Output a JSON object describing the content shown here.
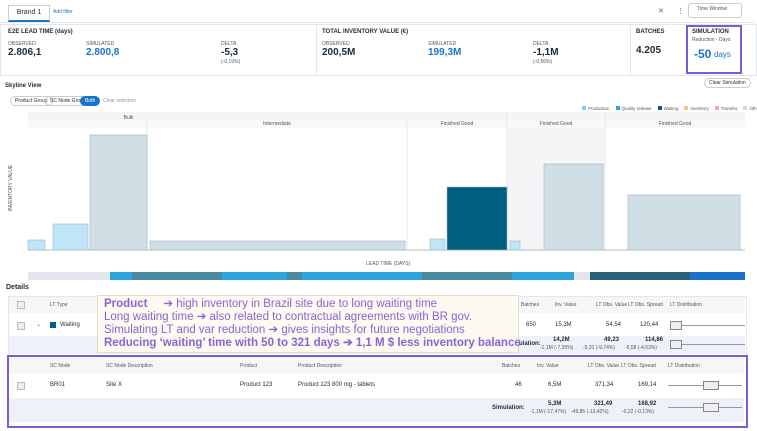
{
  "top_bar": {
    "tab": "Brand 1",
    "add_filter": "Add filter",
    "time_window": "Time Window"
  },
  "kpis": {
    "lead_time": {
      "title": "E2E LEAD TIME (days)",
      "observed_label": "OBSERVED",
      "observed": "2.806,1",
      "simulated_label": "SIMULATED",
      "simulated": "2.800,8",
      "delta_label": "DELTA",
      "delta": "-5,3",
      "delta_pct": "(-0,19%)"
    },
    "inventory": {
      "title": "TOTAL INVENTORY VALUE (€)",
      "observed_label": "OBSERVED",
      "observed": "200,5M",
      "simulated_label": "SIMULATED",
      "simulated": "199,3M",
      "delta_label": "DELTA",
      "delta": "-1,1M",
      "delta_pct": "(-0,56%)"
    },
    "batches": {
      "title": "BATCHES",
      "value": "4.205"
    },
    "simulation": {
      "title": "SIMULATION",
      "subtitle": "Reduction - Days",
      "value": "-50",
      "unit": "days"
    }
  },
  "skyline": {
    "title": "Skyline View",
    "clear_simulation": "Clear Simulation",
    "buttons": [
      "Product Group",
      "SC Node Group",
      "Both"
    ],
    "clear_selection": "Clear selection",
    "legend": [
      "Production",
      "Quality release",
      "Waiting",
      "Inventory",
      "Transfer",
      "Other"
    ],
    "groups": [
      "Bulk",
      "Intermediate",
      "Finished Good",
      "Finished Good",
      "Finished Good"
    ],
    "y_label": "INVENTORY VALUE",
    "x_label": "LEAD TIME (DAYS)"
  },
  "details": {
    "title": "Details",
    "header": [
      "LT Type",
      "Batches",
      "Inv. Value",
      "LT Obs. Value",
      "LT Obs. Spread",
      "LT Distribution"
    ],
    "row": {
      "lt_type": "Waiting",
      "batches": "650",
      "inv_value": "15,3M",
      "lt_obs_value": "54,54",
      "lt_obs_spread": "120,44"
    },
    "simulation": {
      "label": "Simulation:",
      "inv_value": "14,2M",
      "inv_delta": "-1,1M (-7,35%)",
      "lt_obs_value": "49,23",
      "lt_obs_delta": "-5,31 (-9,74%)",
      "lt_obs_spread": "114,86",
      "lt_spread_delta": "-5,58 (-4,63%)"
    }
  },
  "node_table": {
    "header": [
      "SC Node",
      "SC Node Description",
      "Product",
      "Product Description",
      "Batches",
      "Inv. Value",
      "LT Obs. Value",
      "LT Obs. Spread",
      "LT Distribution"
    ],
    "row": [
      "BR01",
      "Site X",
      "Product 123",
      "Product 123 800 mg - tablets",
      "46",
      "6,5M",
      "371,34",
      "169,14"
    ],
    "simulation": {
      "label": "Simulation:",
      "inv_value": "5,3M",
      "inv_delta": "-1,1M (-17,47%)",
      "lt_obs_value": "321,49",
      "lt_obs_delta": "-49,85 (-13,42%)",
      "lt_obs_spread": "168,92",
      "lt_spread_delta": "-0,22 (-0,13%)"
    }
  },
  "annotation": {
    "line1_label": "Product",
    "line1_text": "➔ high inventory in Brazil site due to long waiting time",
    "line2": "Long waiting time ➔ also related to contractual agreements with BR gov.",
    "line3": "Simulating LT and var reduction ➔ gives insights for future negotiations",
    "line4": "Reducing ‘waiting’ time with 50 to 321 days ➔ 1,1 M $ less inventory balance"
  }
}
